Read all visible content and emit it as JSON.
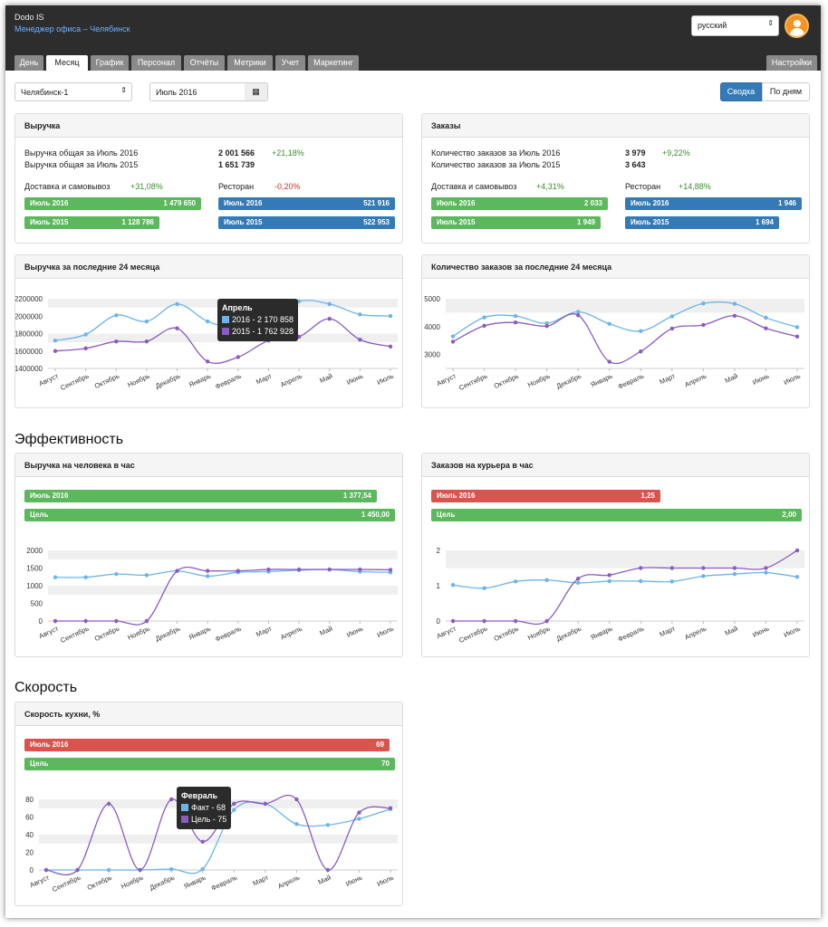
{
  "header": {
    "brand": "Dodo IS",
    "subtitle": "Менеджер офиса – Челябинск",
    "language": "русский",
    "tabs": [
      "День",
      "Месяц",
      "График",
      "Персонал",
      "Отчёты",
      "Метрики",
      "Учет",
      "Маркетинг"
    ],
    "settings": "Настройки",
    "active_tab": "Месяц"
  },
  "controls": {
    "city": "Челябинск-1",
    "month": "Июль 2016",
    "summary": "Сводка",
    "by_day": "По дням"
  },
  "revenue": {
    "title": "Выручка",
    "total_2016_label": "Выручка общая за Июль 2016",
    "total_2016": "2 001 566",
    "total_change": "+21,18%",
    "total_2015_label": "Выручка общая за Июль 2015",
    "total_2015": "1 651 739",
    "delivery_label": "Доставка и самовывоз",
    "delivery_change": "+31,08%",
    "restaurant_label": "Ресторан",
    "restaurant_change": "-0,20%",
    "bar1_label": "Июль 2016",
    "bar1_value": "1 479 650",
    "bar2_label": "Июль 2015",
    "bar2_value": "1 128 786",
    "bar3_label": "Июль 2016",
    "bar3_value": "521 916",
    "bar4_label": "Июль 2015",
    "bar4_value": "522 953"
  },
  "orders": {
    "title": "Заказы",
    "total_2016_label": "Количество заказов за Июль 2016",
    "total_2016": "3 979",
    "total_change": "+9,22%",
    "total_2015_label": "Количество заказов за Июль 2015",
    "total_2015": "3 643",
    "delivery_label": "Доставка и самовывоз",
    "delivery_change": "+4,31%",
    "restaurant_label": "Ресторан",
    "restaurant_change": "+14,88%",
    "bar1_label": "Июль 2016",
    "bar1_value": "2 033",
    "bar2_label": "Июль 2015",
    "bar2_value": "1 949",
    "bar3_label": "Июль 2016",
    "bar3_value": "1 946",
    "bar4_label": "Июль 2015",
    "bar4_value": "1 694"
  },
  "section_efficiency": "Эффективность",
  "section_speed": "Скорость",
  "rev_per_hour": {
    "title": "Выручка на человека в час",
    "bar1_label": "Июль 2016",
    "bar1_value": "1 377,54",
    "bar1_frac": 0.95,
    "bar2_label": "Цель",
    "bar2_value": "1 450,00"
  },
  "orders_per_courier": {
    "title": "Заказов на курьера в час",
    "bar1_label": "Июль 2016",
    "bar1_value": "1,25",
    "bar1_frac": 0.625,
    "bar2_label": "Цель",
    "bar2_value": "2,00"
  },
  "kitchen_speed": {
    "title": "Скорость кухни, %",
    "bar1_label": "Июль 2016",
    "bar1_value": "69",
    "bar1_frac": 0.986,
    "bar2_label": "Цель",
    "bar2_value": "70"
  },
  "tooltips": {
    "rev_title": "Апрель",
    "rev_line1": "2016 - 2 170 858",
    "rev_line2": "2015 - 1 762 928",
    "kitchen_title": "Февраль",
    "kitchen_line1": "Факт - 68",
    "kitchen_line2": "Цель - 75"
  },
  "colors": {
    "line1": "#6cb4e8",
    "line2": "#8a5cc0",
    "green": "#5cb85c",
    "blue": "#337ab7",
    "red": "#d9534f"
  },
  "chart_data": [
    {
      "type": "line",
      "title": "Выручка за последние 24 месяца",
      "categories": [
        "Август",
        "Сентябрь",
        "Октябрь",
        "Ноябрь",
        "Декабрь",
        "Январь",
        "Февраль",
        "Март",
        "Апрель",
        "Май",
        "Июнь",
        "Июль"
      ],
      "yticks": [
        "2200000",
        "2000000",
        "1800000",
        "1600000",
        "1400000"
      ],
      "ylim": [
        1400000,
        2200000
      ],
      "series": [
        {
          "name": "2016",
          "values": [
            1720000,
            1790000,
            2010000,
            1940000,
            2140000,
            1940000,
            1860000,
            1960000,
            2170858,
            2140000,
            2020000,
            2001566
          ]
        },
        {
          "name": "2015",
          "values": [
            1600000,
            1630000,
            1710000,
            1710000,
            1860000,
            1480000,
            1530000,
            1720000,
            1762928,
            1970000,
            1730000,
            1651739
          ]
        }
      ]
    },
    {
      "type": "line",
      "title": "Количество заказов за последние 24 месяца",
      "categories": [
        "Август",
        "Сентябрь",
        "Октябрь",
        "Ноябрь",
        "Декабрь",
        "Январь",
        "Февраль",
        "Март",
        "Апрель",
        "Май",
        "Июнь",
        "Июль"
      ],
      "yticks": [
        "5000",
        "4000",
        "3000"
      ],
      "ylim": [
        2500,
        5000
      ],
      "series": [
        {
          "name": "2016",
          "values": [
            3650,
            4330,
            4380,
            4120,
            4530,
            4100,
            3840,
            4370,
            4830,
            4820,
            4320,
            3979
          ]
        },
        {
          "name": "2015",
          "values": [
            3460,
            4030,
            4150,
            4020,
            4410,
            2740,
            3110,
            3930,
            4060,
            4390,
            3940,
            3643
          ]
        }
      ]
    },
    {
      "type": "line",
      "title": "Выручка на человека в час",
      "categories": [
        "Август",
        "Сентябрь",
        "Октябрь",
        "Ноябрь",
        "Декабрь",
        "Январь",
        "Февраль",
        "Март",
        "Апрель",
        "Май",
        "Июнь",
        "Июль"
      ],
      "yticks": [
        "2000",
        "1500",
        "1000",
        "500",
        "0"
      ],
      "ylim": [
        0,
        2000
      ],
      "series": [
        {
          "name": "Факт",
          "values": [
            1240,
            1240,
            1330,
            1300,
            1420,
            1270,
            1380,
            1400,
            1440,
            1460,
            1400,
            1377.54
          ]
        },
        {
          "name": "Цель",
          "values": [
            0,
            0,
            0,
            0,
            1420,
            1420,
            1420,
            1460,
            1460,
            1460,
            1460,
            1450
          ]
        }
      ]
    },
    {
      "type": "line",
      "title": "Заказов на курьера в час",
      "categories": [
        "Август",
        "Сентябрь",
        "Октябрь",
        "Ноябрь",
        "Декабрь",
        "Январь",
        "Февраль",
        "Март",
        "Апрель",
        "Май",
        "Июнь",
        "Июль"
      ],
      "yticks": [
        "2",
        "1",
        "0"
      ],
      "ylim": [
        0,
        2
      ],
      "series": [
        {
          "name": "Факт",
          "values": [
            1.02,
            0.93,
            1.12,
            1.16,
            1.08,
            1.13,
            1.13,
            1.12,
            1.27,
            1.33,
            1.37,
            1.25
          ]
        },
        {
          "name": "Цель",
          "values": [
            0,
            0,
            0,
            0,
            1.2,
            1.3,
            1.5,
            1.5,
            1.5,
            1.5,
            1.5,
            2
          ]
        }
      ]
    },
    {
      "type": "line",
      "title": "Скорость кухни, %",
      "categories": [
        "Август",
        "Сентябрь",
        "Октябрь",
        "Ноябрь",
        "Декабрь",
        "Январь",
        "Февраль",
        "Март",
        "Апрель",
        "Май",
        "Июнь",
        "Июль"
      ],
      "yticks": [
        "80",
        "60",
        "40",
        "20",
        "0"
      ],
      "ylim": [
        0,
        80
      ],
      "series": [
        {
          "name": "Факт",
          "values": [
            0,
            0,
            0,
            0,
            1,
            1,
            68,
            75,
            52,
            51,
            58,
            69
          ]
        },
        {
          "name": "Цель",
          "values": [
            0,
            0,
            75,
            0,
            80,
            32,
            75,
            75,
            80,
            0,
            65,
            70
          ]
        }
      ]
    }
  ]
}
